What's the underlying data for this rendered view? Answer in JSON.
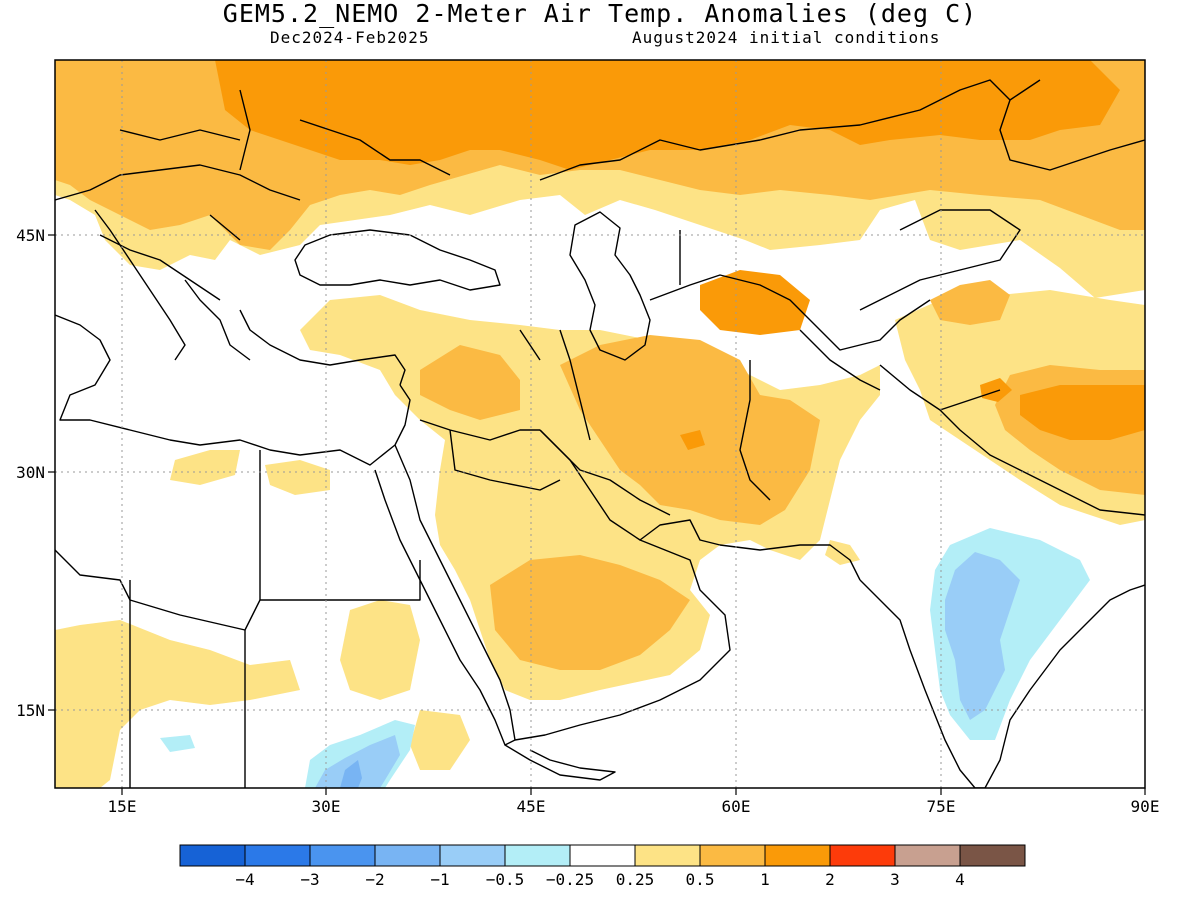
{
  "title": "GEM5.2_NEMO 2-Meter Air Temp. Anomalies (deg C)",
  "subtitle_left": "Dec2024-Feb2025",
  "subtitle_right": "August2024 initial conditions",
  "lon_labels": [
    "15E",
    "30E",
    "45E",
    "60E",
    "75E",
    "90E"
  ],
  "lat_labels": [
    "45N",
    "30N",
    "15N"
  ],
  "colorbar": {
    "colors": [
      "#1662d6",
      "#2b79e8",
      "#4a94ef",
      "#78b4f3",
      "#99cdf7",
      "#b3eef7",
      "#ffffff",
      "#fde386",
      "#fbba43",
      "#fa9a08",
      "#fd3b0a",
      "#c8a090",
      "#7a5546"
    ],
    "labels": [
      "−4",
      "−3",
      "−2",
      "−1",
      "−0.5",
      "−0.25",
      "0.25",
      "0.5",
      "1",
      "2",
      "3",
      "4"
    ]
  },
  "colors": {
    "anom_0_5_1": "#fde386",
    "anom_1_2": "#fbba43",
    "anom_2_3": "#fa9a08",
    "anom_neg_0_5": "#b3eef7",
    "anom_neg_1": "#99cdf7",
    "anom_neg_2": "#78b4f3"
  }
}
